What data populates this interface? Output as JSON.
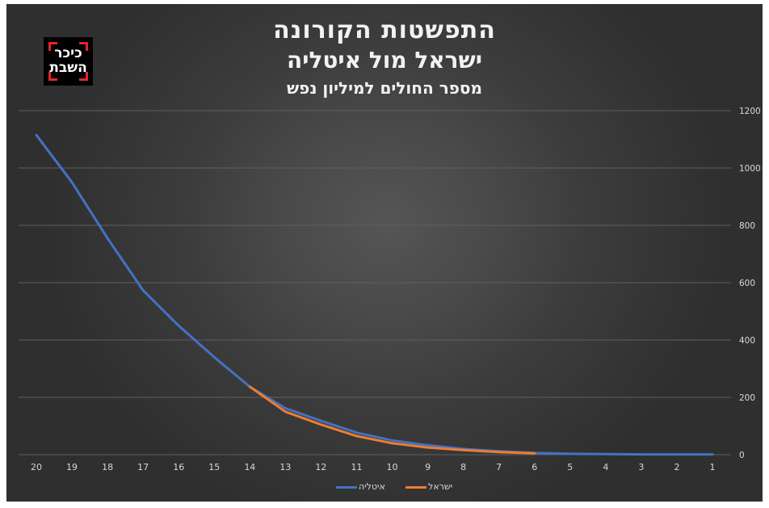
{
  "header": {
    "title": "התפשטות הקורונה",
    "subtitle": "ישראל מול איטליה",
    "caption": "מספר החולים למיליון נפש"
  },
  "logo": {
    "line1": "כיכר",
    "line2": "השבת"
  },
  "colors": {
    "italy": "#4472c4",
    "israel": "#ed7d31",
    "grid": "#5f5f5f",
    "text": "#d9d9d9",
    "background": "#3c3c3c"
  },
  "chart_data": {
    "type": "line",
    "title": "התפשטות הקורונה",
    "categories": [
      "20",
      "19",
      "18",
      "17",
      "16",
      "15",
      "14",
      "13",
      "12",
      "11",
      "10",
      "9",
      "8",
      "7",
      "6",
      "5",
      "4",
      "3",
      "2",
      "1"
    ],
    "ylim": [
      0,
      1200
    ],
    "yticks": [
      0,
      200,
      400,
      600,
      800,
      1000,
      1200
    ],
    "y_axis_side": "right",
    "grid": true,
    "legend_position": "bottom",
    "series": [
      {
        "name": "איטליה",
        "color": "#4472c4",
        "values": [
          1115,
          950,
          755,
          573,
          450,
          340,
          237,
          162,
          118,
          77,
          50,
          33,
          20,
          12,
          6,
          3,
          2,
          1,
          1,
          1
        ]
      },
      {
        "name": "ישראל",
        "color": "#ed7d31",
        "values": [
          null,
          null,
          null,
          null,
          null,
          null,
          237,
          150,
          105,
          65,
          40,
          25,
          16,
          9,
          5,
          null,
          null,
          null,
          null,
          null
        ]
      }
    ]
  }
}
